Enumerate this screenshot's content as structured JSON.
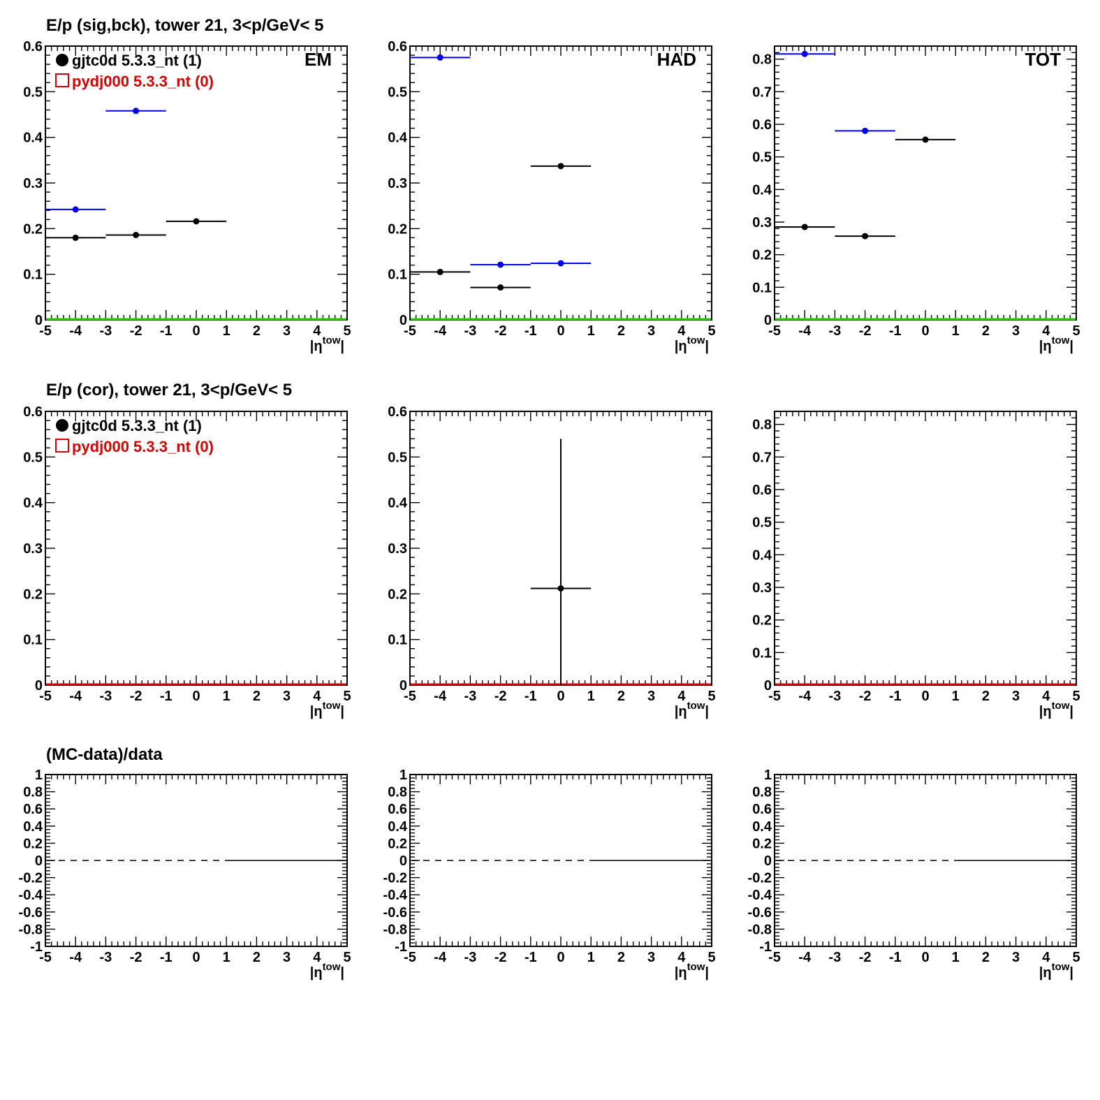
{
  "colors": {
    "data": "#000000",
    "sig": "#0000e6",
    "mc": "#d00000",
    "zero_line": "#33cc00"
  },
  "legend": {
    "data_label": "gjtc0d 5.3.3_nt (1)",
    "mc_label": "pydj000 5.3.3_nt (0)"
  },
  "row_titles": [
    "E/p (sig,bck), tower 21,  3<p/GeV< 5",
    "E/p (cor), tower 21,  3<p/GeV< 5",
    "(MC-data)/data"
  ],
  "x_axis": {
    "label_main": "|η",
    "label_sup": "tow",
    "label_close": "|",
    "range": [
      -5,
      5
    ],
    "ticks": [
      -5,
      -4,
      -3,
      -2,
      -1,
      0,
      1,
      2,
      3,
      4,
      5
    ]
  },
  "chart_data": [
    {
      "id": "sigbck-em",
      "type": "scatter",
      "corner_label": "EM",
      "legend": true,
      "xlim": [
        -5,
        5
      ],
      "ylim": [
        0,
        0.6
      ],
      "yticks": [
        0,
        0.1,
        0.2,
        0.3,
        0.4,
        0.5,
        0.6
      ],
      "baseline": "zero_line",
      "series": [
        {
          "color": "sig",
          "points": [
            {
              "x": -4,
              "xerr": 1,
              "y": 0.242
            },
            {
              "x": -2,
              "xerr": 1,
              "y": 0.458
            }
          ]
        },
        {
          "color": "data",
          "points": [
            {
              "x": -4,
              "xerr": 1,
              "y": 0.18
            },
            {
              "x": -2,
              "xerr": 1,
              "y": 0.186
            },
            {
              "x": 0,
              "xerr": 1,
              "y": 0.216
            }
          ]
        }
      ]
    },
    {
      "id": "sigbck-had",
      "type": "scatter",
      "corner_label": "HAD",
      "legend": false,
      "xlim": [
        -5,
        5
      ],
      "ylim": [
        0,
        0.6
      ],
      "yticks": [
        0,
        0.1,
        0.2,
        0.3,
        0.4,
        0.5,
        0.6
      ],
      "baseline": "zero_line",
      "series": [
        {
          "color": "sig",
          "points": [
            {
              "x": -4,
              "xerr": 1,
              "y": 0.575
            },
            {
              "x": -2,
              "xerr": 1,
              "y": 0.121
            },
            {
              "x": 0,
              "xerr": 1,
              "y": 0.124
            }
          ]
        },
        {
          "color": "data",
          "points": [
            {
              "x": -4,
              "xerr": 1,
              "y": 0.105
            },
            {
              "x": -2,
              "xerr": 1,
              "y": 0.071
            },
            {
              "x": 0,
              "xerr": 1,
              "y": 0.337
            }
          ]
        }
      ]
    },
    {
      "id": "sigbck-tot",
      "type": "scatter",
      "corner_label": "TOT",
      "legend": false,
      "xlim": [
        -5,
        5
      ],
      "ylim": [
        0,
        0.84
      ],
      "yticks": [
        0,
        0.1,
        0.2,
        0.3,
        0.4,
        0.5,
        0.6,
        0.7,
        0.8
      ],
      "baseline": "zero_line",
      "series": [
        {
          "color": "sig",
          "points": [
            {
              "x": -4,
              "xerr": 1,
              "y": 0.816
            },
            {
              "x": -2,
              "xerr": 1,
              "y": 0.58
            }
          ]
        },
        {
          "color": "data",
          "points": [
            {
              "x": -4,
              "xerr": 1,
              "y": 0.285
            },
            {
              "x": -2,
              "xerr": 1,
              "y": 0.257
            },
            {
              "x": 0,
              "xerr": 1,
              "y": 0.553
            }
          ]
        }
      ]
    },
    {
      "id": "cor-em",
      "type": "scatter",
      "corner_label": "",
      "legend": true,
      "xlim": [
        -5,
        5
      ],
      "ylim": [
        0,
        0.6
      ],
      "yticks": [
        0,
        0.1,
        0.2,
        0.3,
        0.4,
        0.5,
        0.6
      ],
      "baseline": "mc",
      "series": []
    },
    {
      "id": "cor-had",
      "type": "scatter",
      "corner_label": "",
      "legend": false,
      "xlim": [
        -5,
        5
      ],
      "ylim": [
        0,
        0.6
      ],
      "yticks": [
        0,
        0.1,
        0.2,
        0.3,
        0.4,
        0.5,
        0.6
      ],
      "baseline": "mc",
      "series": [
        {
          "color": "data",
          "points": [
            {
              "x": 0,
              "xerr": 1,
              "y": 0.212,
              "ylow": 0,
              "yhigh": 0.54
            }
          ]
        }
      ]
    },
    {
      "id": "cor-tot",
      "type": "scatter",
      "corner_label": "",
      "legend": false,
      "xlim": [
        -5,
        5
      ],
      "ylim": [
        0,
        0.84
      ],
      "yticks": [
        0,
        0.1,
        0.2,
        0.3,
        0.4,
        0.5,
        0.6,
        0.7,
        0.8
      ],
      "baseline": "mc",
      "series": []
    },
    {
      "id": "ratio-em",
      "type": "line",
      "corner_label": "",
      "legend": false,
      "xlim": [
        -5,
        5
      ],
      "ylim": [
        -1,
        1
      ],
      "yticks": [
        -1,
        -0.8,
        -0.6,
        -0.4,
        -0.2,
        0,
        0.2,
        0.4,
        0.6,
        0.8,
        1
      ],
      "ratio": {
        "dashed_x": [
          -5,
          1
        ],
        "solid_x": [
          1,
          5
        ],
        "y": 0
      },
      "series": []
    },
    {
      "id": "ratio-had",
      "type": "line",
      "corner_label": "",
      "legend": false,
      "xlim": [
        -5,
        5
      ],
      "ylim": [
        -1,
        1
      ],
      "yticks": [
        -1,
        -0.8,
        -0.6,
        -0.4,
        -0.2,
        0,
        0.2,
        0.4,
        0.6,
        0.8,
        1
      ],
      "ratio": {
        "dashed_x": [
          -5,
          1
        ],
        "solid_x": [
          1,
          5
        ],
        "y": 0
      },
      "series": []
    },
    {
      "id": "ratio-tot",
      "type": "line",
      "corner_label": "",
      "legend": false,
      "xlim": [
        -5,
        5
      ],
      "ylim": [
        -1,
        1
      ],
      "yticks": [
        -1,
        -0.8,
        -0.6,
        -0.4,
        -0.2,
        0,
        0.2,
        0.4,
        0.6,
        0.8,
        1
      ],
      "ratio": {
        "dashed_x": [
          -5,
          1
        ],
        "solid_x": [
          1,
          5
        ],
        "y": 0
      },
      "series": []
    }
  ]
}
